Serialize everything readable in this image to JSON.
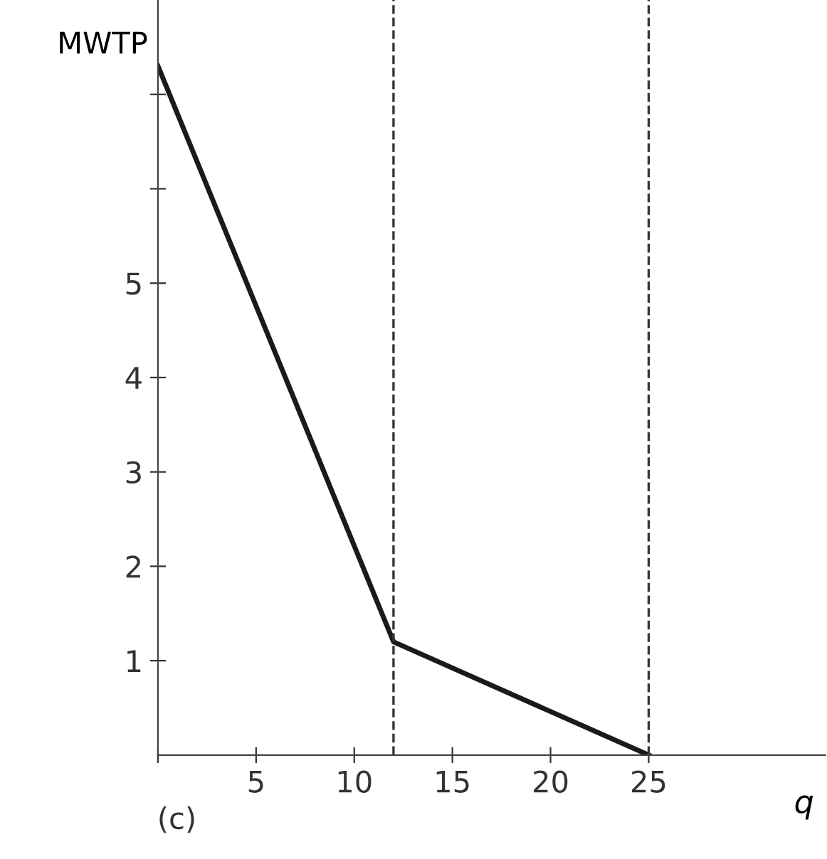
{
  "chart_data": {
    "type": "line",
    "xlabel": "q",
    "ylabel": "MWTP",
    "x": [
      0,
      12,
      25
    ],
    "series": [
      {
        "color": "#1a1a1a",
        "values": [
          7.3,
          1.2,
          0
        ]
      }
    ],
    "xlim": [
      0,
      34
    ],
    "ylim": [
      0,
      8
    ],
    "xticks": [
      {
        "value": 0,
        "label": null
      },
      5,
      10,
      15,
      20,
      25
    ],
    "yticks": [
      1,
      2,
      3,
      4,
      5,
      {
        "value": 6,
        "label": null
      },
      {
        "value": 7,
        "label": null
      }
    ],
    "ref_lines": [
      {
        "axis": "x",
        "value": 12,
        "label": null,
        "color": "#333333",
        "line_style": "dashed"
      },
      {
        "axis": "x",
        "value": 25,
        "label": null,
        "color": "#333333",
        "line_style": "dashed"
      }
    ],
    "annotations": [
      "(c)"
    ],
    "grid": false,
    "legend": false,
    "marker": "none",
    "line_style": "solid"
  }
}
